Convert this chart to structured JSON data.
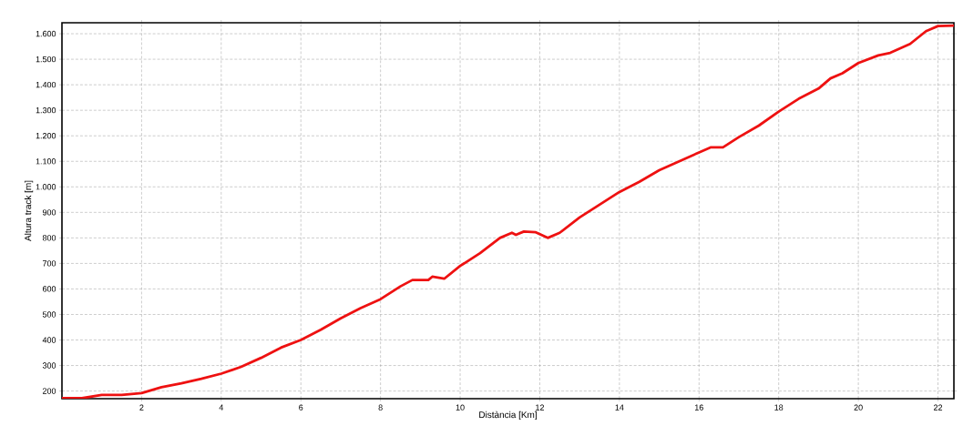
{
  "chart_data": {
    "type": "line",
    "xlabel": "Distància [Km]",
    "ylabel": "Altura track [m]",
    "x": [
      0,
      0.5,
      1.0,
      1.5,
      2.0,
      2.5,
      3,
      3.5,
      4,
      4.5,
      5,
      5.5,
      6,
      6.5,
      7,
      7.5,
      8,
      8.5,
      8.8,
      9.2,
      9.3,
      9.6,
      10,
      10.5,
      11,
      11.3,
      11.4,
      11.6,
      11.9,
      12.2,
      12.5,
      13,
      13.5,
      14,
      14.5,
      15,
      15.5,
      16,
      16.3,
      16.6,
      17,
      17.5,
      18,
      18.5,
      19,
      19.3,
      19.6,
      20,
      20.5,
      20.8,
      21.3,
      21.7,
      22,
      22.4
    ],
    "series": [
      {
        "color": "#ee1111",
        "values": [
          172,
          172,
          185,
          185,
          192,
          215,
          230,
          248,
          268,
          295,
          330,
          370,
          400,
          440,
          485,
          525,
          560,
          610,
          635,
          635,
          648,
          640,
          690,
          740,
          800,
          820,
          812,
          825,
          822,
          800,
          820,
          880,
          930,
          980,
          1020,
          1065,
          1100,
          1135,
          1155,
          1155,
          1195,
          1240,
          1295,
          1345,
          1385,
          1425,
          1445,
          1485,
          1515,
          1525,
          1560,
          1610,
          1630,
          1632
        ]
      }
    ],
    "xlim": [
      0,
      22.4
    ],
    "ylim": [
      170,
      1643
    ],
    "xticks": [
      2,
      4,
      6,
      8,
      10,
      12,
      14,
      16,
      18,
      20,
      22
    ],
    "yticks": [
      200,
      300,
      400,
      500,
      600,
      700,
      800,
      900,
      {
        "value": 1000,
        "label": "1.000"
      },
      {
        "value": 1100,
        "label": "1.100"
      },
      {
        "value": 1200,
        "label": "1.200"
      },
      {
        "value": 1300,
        "label": "1.300"
      },
      {
        "value": 1400,
        "label": "1.400"
      },
      {
        "value": 1500,
        "label": "1.500"
      },
      {
        "value": 1600,
        "label": "1.600"
      }
    ],
    "grid": true,
    "marker": "none",
    "line_style": "solid"
  }
}
